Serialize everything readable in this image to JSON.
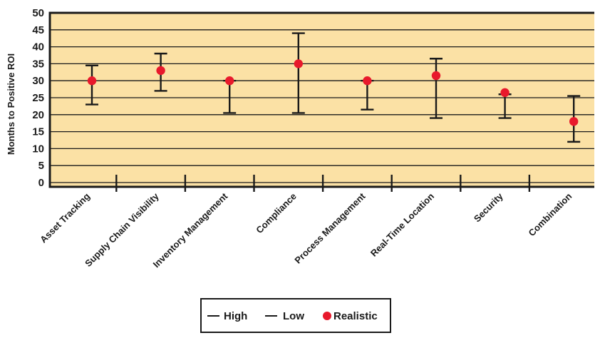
{
  "chart_data": {
    "type": "scatter",
    "ylabel": "Months to Positive ROI",
    "ylim": [
      0,
      50
    ],
    "y_ticks": [
      "0",
      "5",
      "10",
      "15",
      "20",
      "25",
      "30",
      "35",
      "40",
      "45",
      "50"
    ],
    "grid": "horizontal",
    "categories": [
      "Asset Tracking",
      "Supply Chain Visibility",
      "Inventory Management",
      "Compliance",
      "Process Management",
      "Real-Time Location",
      "Security",
      "Combination"
    ],
    "series": [
      {
        "name": "High",
        "values": [
          34.5,
          38,
          30,
          44,
          30,
          36.5,
          26,
          25.5
        ]
      },
      {
        "name": "Low",
        "values": [
          23,
          27,
          20.5,
          20.5,
          21.5,
          19,
          19,
          12
        ]
      },
      {
        "name": "Realistic",
        "values": [
          30,
          33,
          30,
          35,
          30,
          31.5,
          26.5,
          18
        ]
      }
    ],
    "legend_position": "bottom-center",
    "colors": {
      "plot_background": "#fbe1a5",
      "range_line": "#1a1a1a",
      "realistic_marker": "#e8192c",
      "frame": "#1a1a1a"
    }
  }
}
